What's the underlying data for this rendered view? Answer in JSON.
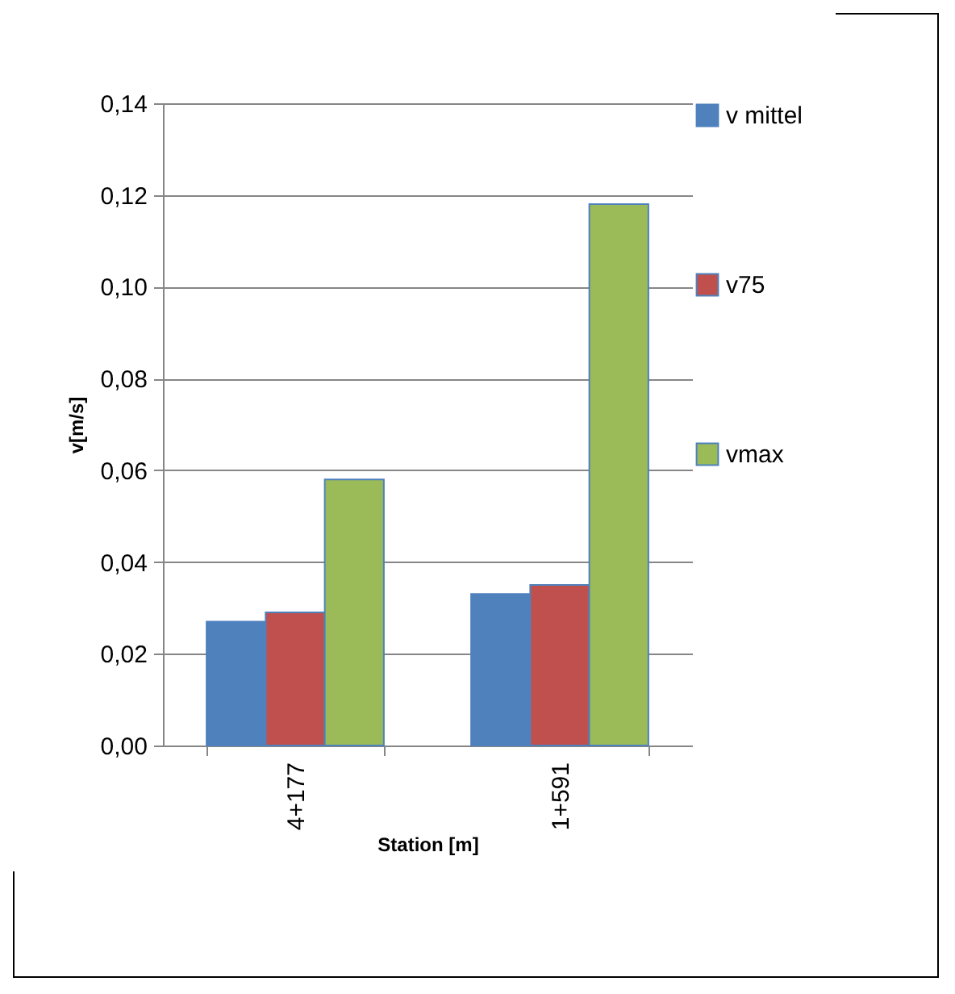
{
  "chart_data": {
    "type": "bar",
    "xlabel": "Station [m]",
    "ylabel": "v[m/s]",
    "categories": [
      "4+177",
      "1+591"
    ],
    "series": [
      {
        "name": "v mittel",
        "color": "#4f81bd",
        "values": [
          0.027,
          0.033
        ]
      },
      {
        "name": "v75",
        "color": "#c0504d",
        "values": [
          0.029,
          0.035
        ]
      },
      {
        "name": "vmax",
        "color": "#9bbb59",
        "values": [
          0.058,
          0.118
        ]
      }
    ],
    "ylim": [
      0,
      0.14
    ],
    "yticks": [
      {
        "value": 0,
        "label": "0,00"
      },
      {
        "value": 0.02,
        "label": "0,02"
      },
      {
        "value": 0.04,
        "label": "0,04"
      },
      {
        "value": 0.06,
        "label": "0,06"
      },
      {
        "value": 0.08,
        "label": "0,08"
      },
      {
        "value": 0.1,
        "label": "0,10"
      },
      {
        "value": 0.12,
        "label": "0,12"
      },
      {
        "value": 0.14,
        "label": "0,14"
      }
    ],
    "grid": "y",
    "legend": "right"
  }
}
